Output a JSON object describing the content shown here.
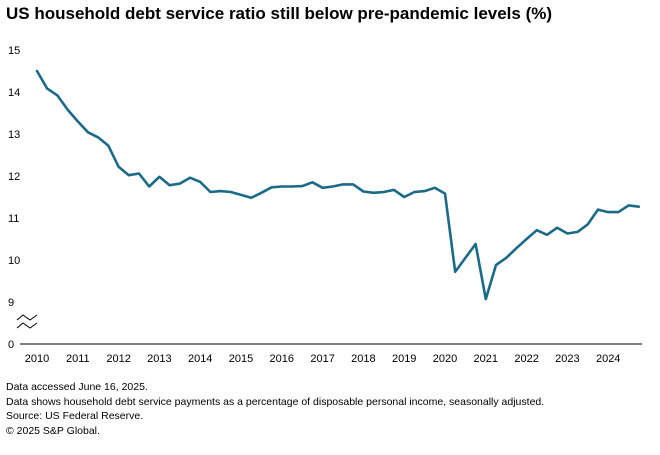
{
  "chart_data": {
    "type": "line",
    "title": "US household debt service ratio still below pre-pandemic levels (%)",
    "xlabel": "",
    "ylabel": "",
    "ylim": [
      0,
      15
    ],
    "axis_break": "between 0 and 9",
    "grid": false,
    "legend": "none",
    "line_color": "#1b6a87",
    "y_ticks": [
      "0",
      "9",
      "10",
      "11",
      "12",
      "13",
      "14",
      "15"
    ],
    "x_ticks": [
      "2010",
      "2011",
      "2012",
      "2013",
      "2014",
      "2015",
      "2016",
      "2017",
      "2018",
      "2019",
      "2020",
      "2021",
      "2022",
      "2023",
      "2024"
    ],
    "series": [
      {
        "x": [
          2010.0,
          2010.25,
          2010.5,
          2010.75,
          2011.0,
          2011.25,
          2011.5,
          2011.75,
          2012.0,
          2012.25,
          2012.5,
          2012.75,
          2013.0,
          2013.25,
          2013.5,
          2013.75,
          2014.0,
          2014.25,
          2014.5,
          2014.75,
          2015.0,
          2015.25,
          2015.5,
          2015.75,
          2016.0,
          2016.25,
          2016.5,
          2016.75,
          2017.0,
          2017.25,
          2017.5,
          2017.75,
          2018.0,
          2018.25,
          2018.5,
          2018.75,
          2019.0,
          2019.25,
          2019.5,
          2019.75,
          2020.0,
          2020.25,
          2020.5,
          2020.75,
          2021.0,
          2021.25,
          2021.5,
          2021.75,
          2022.0,
          2022.25,
          2022.5,
          2022.75,
          2023.0,
          2023.25,
          2023.5,
          2023.75,
          2024.0,
          2024.25,
          2024.5,
          2024.75
        ],
        "values": [
          14.5,
          14.08,
          13.92,
          13.58,
          13.3,
          13.04,
          12.92,
          12.72,
          12.22,
          12.02,
          12.06,
          11.75,
          11.98,
          11.78,
          11.82,
          11.96,
          11.86,
          11.62,
          11.64,
          11.62,
          11.55,
          11.48,
          11.6,
          11.73,
          11.75,
          11.75,
          11.76,
          11.85,
          11.72,
          11.75,
          11.8,
          11.8,
          11.63,
          11.6,
          11.62,
          11.67,
          11.5,
          11.62,
          11.64,
          11.72,
          11.58,
          9.72,
          10.05,
          10.38,
          9.07,
          9.88,
          10.05,
          10.28,
          10.5,
          10.71,
          10.6,
          10.77,
          10.63,
          10.67,
          10.85,
          11.2,
          11.14,
          11.14,
          11.3,
          11.27
        ]
      }
    ]
  },
  "notes": {
    "line1": "Data accessed June 16, 2025.",
    "line2": "Data shows household debt service payments as a percentage of disposable personal income, seasonally adjusted.",
    "line3": "Source: US Federal Reserve.",
    "line4": "© 2025 S&P Global."
  }
}
